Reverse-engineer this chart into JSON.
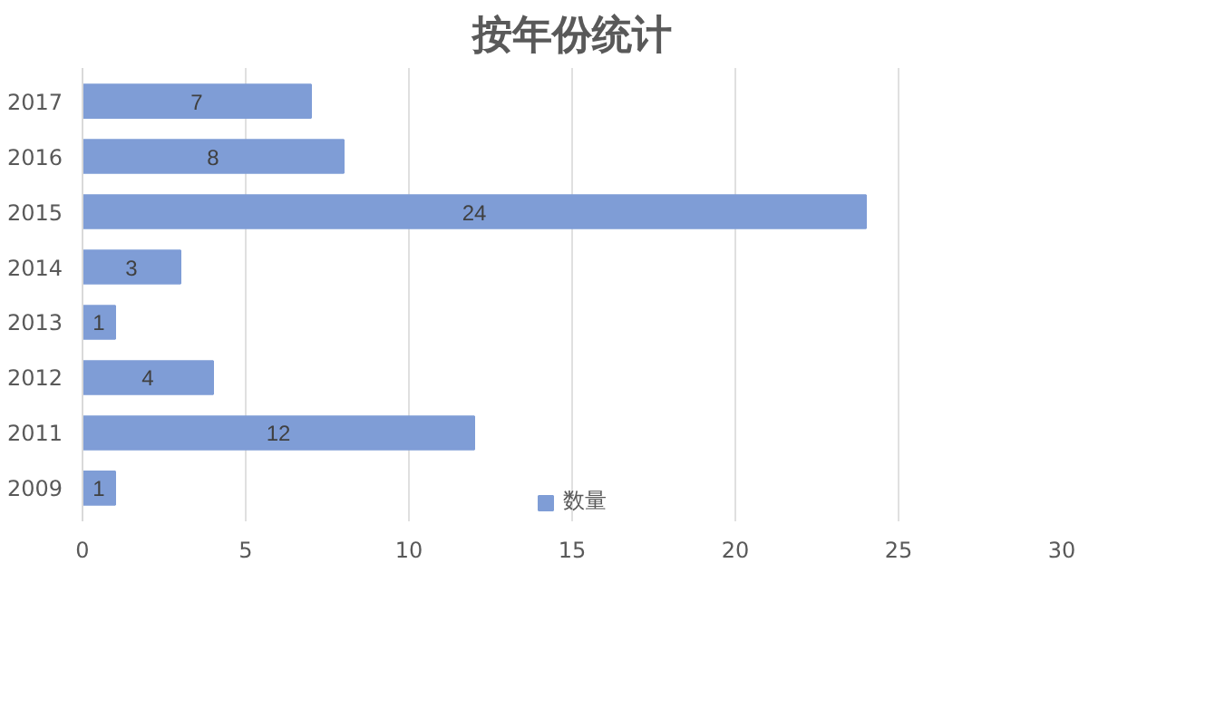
{
  "chart_data": {
    "type": "bar",
    "orientation": "horizontal",
    "title": "按年份统计",
    "categories": [
      "2017",
      "2016",
      "2015",
      "2014",
      "2013",
      "2012",
      "2011",
      "2009"
    ],
    "series": [
      {
        "name": "数量",
        "color": "#7f9dd6",
        "values": [
          7,
          8,
          24,
          3,
          1,
          4,
          12,
          1
        ]
      }
    ],
    "xlim": [
      0,
      30
    ],
    "xticks": [
      0,
      5,
      10,
      15,
      20,
      25,
      30
    ],
    "grid": "x",
    "legend": "bottom",
    "data_labels": true
  }
}
